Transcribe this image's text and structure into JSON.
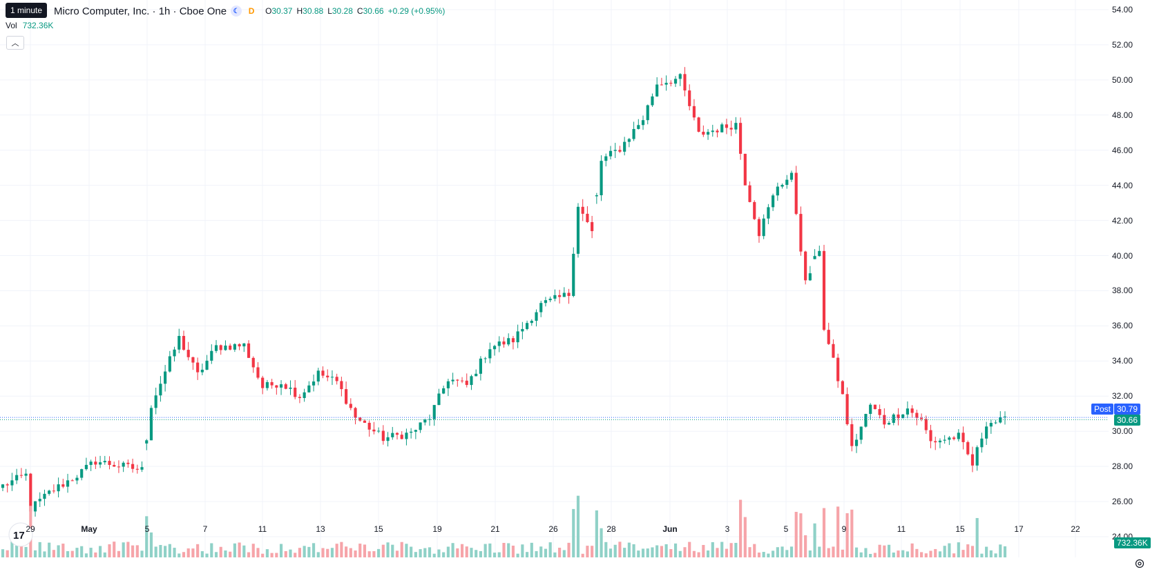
{
  "interval_tooltip": "1 minute",
  "header": {
    "symbol_text": "Micro Computer, Inc. · 1h · Cboe One",
    "ohlc": [
      {
        "k": "O",
        "v": "30.37"
      },
      {
        "k": "H",
        "v": "30.88"
      },
      {
        "k": "L",
        "v": "30.28"
      },
      {
        "k": "C",
        "v": "30.66"
      },
      {
        "k": "",
        "v": "+0.29 (+0.95%)"
      }
    ],
    "vol_label": "Vol",
    "vol_value": "732.36K",
    "d_label": "D"
  },
  "tags": {
    "post_label": "Post",
    "post_price": "30.79",
    "last_price": "30.66",
    "volume": "732.36K"
  },
  "colors": {
    "up": "#089981",
    "down": "#f23645",
    "up_vol": "#8fd1c7",
    "down_vol": "#f6a4a9",
    "grid": "#f0f3fa",
    "post_tag": "#2962ff",
    "last_tag": "#089981"
  },
  "chart_data": {
    "type": "candlestick",
    "ylim": [
      24,
      54
    ],
    "y_ticks": [
      "24.00",
      "26.00",
      "28.00",
      "30.00",
      "32.00",
      "34.00",
      "36.00",
      "38.00",
      "40.00",
      "42.00",
      "44.00",
      "46.00",
      "48.00",
      "50.00",
      "52.00",
      "54.00"
    ],
    "x_ticks": [
      {
        "label": "29",
        "bold": false
      },
      {
        "label": "May",
        "bold": true
      },
      {
        "label": "5",
        "bold": false
      },
      {
        "label": "7",
        "bold": false
      },
      {
        "label": "11",
        "bold": false
      },
      {
        "label": "13",
        "bold": false
      },
      {
        "label": "15",
        "bold": false
      },
      {
        "label": "19",
        "bold": false
      },
      {
        "label": "21",
        "bold": false
      },
      {
        "label": "26",
        "bold": false
      },
      {
        "label": "28",
        "bold": false
      },
      {
        "label": "Jun",
        "bold": true
      },
      {
        "label": "3",
        "bold": false
      },
      {
        "label": "5",
        "bold": false
      },
      {
        "label": "9",
        "bold": false
      },
      {
        "label": "11",
        "bold": false
      },
      {
        "label": "15",
        "bold": false
      },
      {
        "label": "17",
        "bold": false
      },
      {
        "label": "22",
        "bold": false
      }
    ],
    "anchors": [
      [
        0,
        26.9
      ],
      [
        5,
        27.5
      ],
      [
        6,
        25.6
      ],
      [
        10,
        26.5
      ],
      [
        16,
        27.5
      ],
      [
        20,
        28.3
      ],
      [
        30,
        27.8
      ],
      [
        32,
        31.5
      ],
      [
        38,
        35.3
      ],
      [
        42,
        33.2
      ],
      [
        46,
        34.8
      ],
      [
        52,
        34.9
      ],
      [
        56,
        32.5
      ],
      [
        60,
        32.8
      ],
      [
        64,
        32.0
      ],
      [
        68,
        33.3
      ],
      [
        72,
        32.8
      ],
      [
        76,
        30.8
      ],
      [
        82,
        29.6
      ],
      [
        88,
        29.9
      ],
      [
        92,
        30.8
      ],
      [
        96,
        33.0
      ],
      [
        100,
        32.6
      ],
      [
        105,
        34.8
      ],
      [
        110,
        35.2
      ],
      [
        116,
        37.2
      ],
      [
        122,
        37.8
      ],
      [
        124,
        42.9
      ],
      [
        127,
        41.3
      ],
      [
        129,
        45.4
      ],
      [
        133,
        46.1
      ],
      [
        138,
        47.8
      ],
      [
        141,
        49.8
      ],
      [
        146,
        50.1
      ],
      [
        150,
        46.9
      ],
      [
        154,
        47.2
      ],
      [
        158,
        47.5
      ],
      [
        160,
        44.2
      ],
      [
        163,
        41.3
      ],
      [
        167,
        44.0
      ],
      [
        170,
        44.5
      ],
      [
        173,
        38.4
      ],
      [
        176,
        40.4
      ],
      [
        177,
        35.9
      ],
      [
        181,
        32.0
      ],
      [
        183,
        29.0
      ],
      [
        187,
        31.5
      ],
      [
        190,
        30.5
      ],
      [
        195,
        31.3
      ],
      [
        198,
        30.6
      ],
      [
        200,
        29.4
      ],
      [
        206,
        29.7
      ],
      [
        209,
        28.1
      ],
      [
        212,
        30.5
      ],
      [
        216,
        30.6
      ]
    ],
    "gaps": [
      31,
      128,
      175
    ]
  }
}
